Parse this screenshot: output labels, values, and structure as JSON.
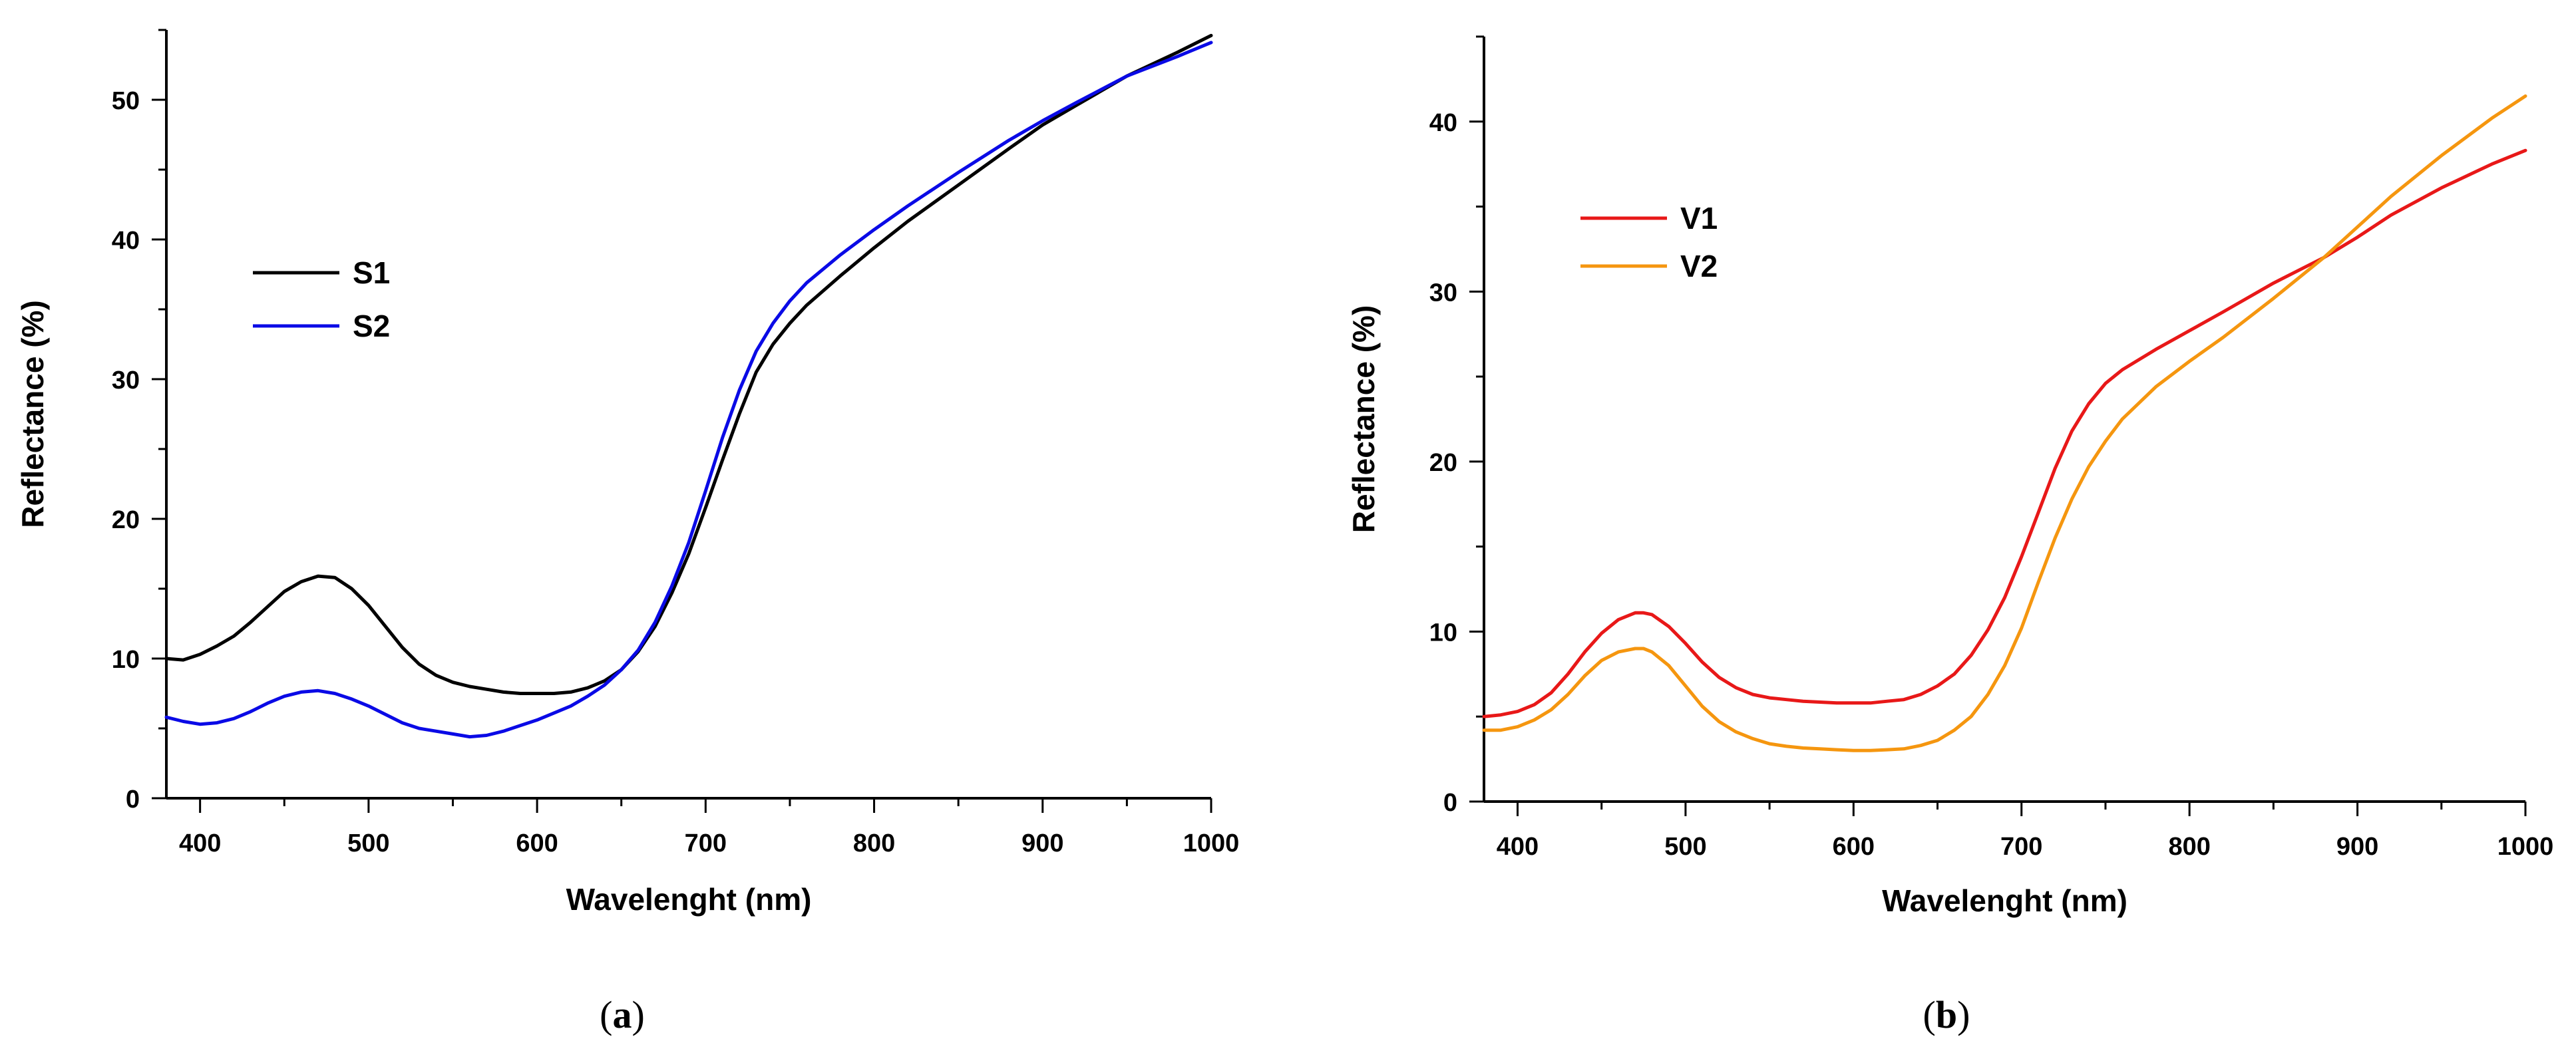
{
  "chart_data": [
    {
      "type": "line",
      "panel": "(a)",
      "panel_letter": "a",
      "xlabel": "Wavelenght (nm)",
      "ylabel": "Reflectance (%)",
      "xlim": [
        380,
        1000
      ],
      "ylim": [
        0,
        55
      ],
      "xticks": [
        400,
        500,
        600,
        700,
        800,
        900,
        1000
      ],
      "yticks": [
        0,
        10,
        20,
        30,
        40,
        50
      ],
      "legend_position": "left-middle",
      "series": [
        {
          "name": "S1",
          "color": "#000000",
          "x": [
            380,
            390,
            400,
            410,
            420,
            430,
            440,
            450,
            460,
            470,
            480,
            490,
            500,
            510,
            520,
            530,
            540,
            550,
            560,
            570,
            580,
            590,
            600,
            610,
            620,
            630,
            640,
            650,
            660,
            670,
            680,
            690,
            700,
            710,
            720,
            730,
            740,
            750,
            760,
            780,
            800,
            820,
            850,
            880,
            900,
            920,
            950,
            980,
            1000
          ],
          "y": [
            10.0,
            9.9,
            10.3,
            10.9,
            11.6,
            12.6,
            13.7,
            14.8,
            15.5,
            15.9,
            15.8,
            15.0,
            13.8,
            12.3,
            10.8,
            9.6,
            8.8,
            8.3,
            8.0,
            7.8,
            7.6,
            7.5,
            7.5,
            7.5,
            7.6,
            7.9,
            8.4,
            9.2,
            10.5,
            12.3,
            14.7,
            17.5,
            20.8,
            24.2,
            27.5,
            30.5,
            32.5,
            34.0,
            35.3,
            37.4,
            39.4,
            41.3,
            43.9,
            46.5,
            48.2,
            49.6,
            51.7,
            53.4,
            54.6
          ]
        },
        {
          "name": "S2",
          "color": "#0a0ae6",
          "x": [
            380,
            390,
            400,
            410,
            420,
            430,
            440,
            450,
            460,
            470,
            480,
            490,
            500,
            510,
            520,
            530,
            540,
            550,
            560,
            570,
            580,
            590,
            600,
            610,
            620,
            630,
            640,
            650,
            660,
            670,
            680,
            690,
            700,
            710,
            720,
            730,
            740,
            750,
            760,
            780,
            800,
            820,
            850,
            880,
            900,
            920,
            950,
            980,
            1000
          ],
          "y": [
            5.8,
            5.5,
            5.3,
            5.4,
            5.7,
            6.2,
            6.8,
            7.3,
            7.6,
            7.7,
            7.5,
            7.1,
            6.6,
            6.0,
            5.4,
            5.0,
            4.8,
            4.6,
            4.4,
            4.5,
            4.8,
            5.2,
            5.6,
            6.1,
            6.6,
            7.3,
            8.1,
            9.2,
            10.6,
            12.6,
            15.2,
            18.3,
            22.0,
            25.8,
            29.2,
            32.0,
            34.0,
            35.6,
            36.9,
            38.9,
            40.7,
            42.4,
            44.8,
            47.1,
            48.5,
            49.8,
            51.7,
            53.1,
            54.1
          ]
        }
      ]
    },
    {
      "type": "line",
      "panel": "(b)",
      "panel_letter": "b",
      "xlabel": "Wavelenght (nm)",
      "ylabel": "Reflectance (%)",
      "xlim": [
        380,
        1000
      ],
      "ylim": [
        0,
        45
      ],
      "xticks": [
        400,
        500,
        600,
        700,
        800,
        900,
        1000
      ],
      "yticks": [
        0,
        10,
        20,
        30,
        40
      ],
      "legend_position": "top-left",
      "series": [
        {
          "name": "V1",
          "color": "#e81818",
          "x": [
            380,
            390,
            400,
            410,
            420,
            430,
            440,
            450,
            460,
            470,
            475,
            480,
            490,
            500,
            510,
            520,
            530,
            540,
            550,
            560,
            570,
            580,
            590,
            600,
            610,
            620,
            630,
            640,
            650,
            660,
            670,
            680,
            690,
            700,
            710,
            720,
            730,
            740,
            750,
            760,
            780,
            800,
            820,
            850,
            880,
            900,
            920,
            950,
            980,
            1000
          ],
          "y": [
            5.0,
            5.1,
            5.3,
            5.7,
            6.4,
            7.5,
            8.8,
            9.9,
            10.7,
            11.1,
            11.1,
            11.0,
            10.3,
            9.3,
            8.2,
            7.3,
            6.7,
            6.3,
            6.1,
            6.0,
            5.9,
            5.85,
            5.8,
            5.8,
            5.8,
            5.9,
            6.0,
            6.3,
            6.8,
            7.5,
            8.6,
            10.1,
            12.0,
            14.4,
            17.0,
            19.6,
            21.8,
            23.4,
            24.6,
            25.4,
            26.6,
            27.7,
            28.8,
            30.5,
            32.0,
            33.2,
            34.5,
            36.1,
            37.5,
            38.3
          ]
        },
        {
          "name": "V2",
          "color": "#f5960f",
          "x": [
            380,
            390,
            400,
            410,
            420,
            430,
            440,
            450,
            460,
            470,
            475,
            480,
            490,
            500,
            510,
            520,
            530,
            540,
            550,
            560,
            570,
            580,
            590,
            600,
            610,
            620,
            630,
            640,
            650,
            660,
            670,
            680,
            690,
            700,
            710,
            720,
            730,
            740,
            750,
            760,
            780,
            800,
            820,
            850,
            880,
            900,
            920,
            950,
            980,
            1000
          ],
          "y": [
            4.2,
            4.2,
            4.4,
            4.8,
            5.4,
            6.3,
            7.4,
            8.3,
            8.8,
            9.0,
            9.0,
            8.8,
            8.0,
            6.8,
            5.6,
            4.7,
            4.1,
            3.7,
            3.4,
            3.25,
            3.15,
            3.1,
            3.05,
            3.0,
            3.0,
            3.05,
            3.1,
            3.3,
            3.6,
            4.2,
            5.0,
            6.3,
            8.0,
            10.2,
            12.9,
            15.5,
            17.8,
            19.7,
            21.2,
            22.5,
            24.4,
            25.9,
            27.3,
            29.6,
            32.0,
            33.8,
            35.6,
            38.0,
            40.2,
            41.5
          ]
        }
      ]
    }
  ]
}
